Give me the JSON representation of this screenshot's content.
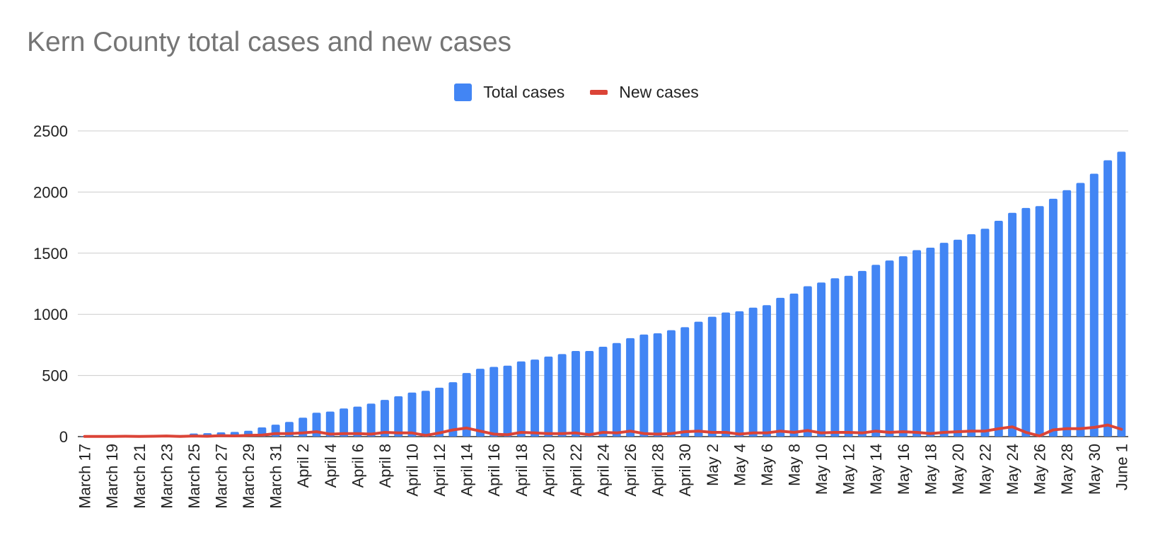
{
  "chart_data": {
    "type": "bar",
    "title": "Kern County total cases and new cases",
    "xlabel": "",
    "ylabel": "",
    "ylim": [
      0,
      2500
    ],
    "yticks": [
      0,
      500,
      1000,
      1500,
      2000,
      2500
    ],
    "grid": true,
    "legend_position": "top-center",
    "categories": [
      "March 17",
      "March 18",
      "March 19",
      "March 20",
      "March 21",
      "March 22",
      "March 23",
      "March 24",
      "March 25",
      "March 26",
      "March 27",
      "March 28",
      "March 29",
      "March 30",
      "March 31",
      "April 1",
      "April 2",
      "April 3",
      "April 4",
      "April 5",
      "April 6",
      "April 7",
      "April 8",
      "April 9",
      "April 10",
      "April 11",
      "April 12",
      "April 13",
      "April 14",
      "April 15",
      "April 16",
      "April 17",
      "April 18",
      "April 19",
      "April 20",
      "April 21",
      "April 22",
      "April 23",
      "April 24",
      "April 25",
      "April 26",
      "April 27",
      "April 28",
      "April 29",
      "April 30",
      "May 1",
      "May 2",
      "May 3",
      "May 4",
      "May 5",
      "May 6",
      "May 7",
      "May 8",
      "May 9",
      "May 10",
      "May 11",
      "May 12",
      "May 13",
      "May 14",
      "May 15",
      "May 16",
      "May 17",
      "May 18",
      "May 19",
      "May 20",
      "May 21",
      "May 22",
      "May 23",
      "May 24",
      "May 25",
      "May 26",
      "May 27",
      "May 28",
      "May 29",
      "May 30",
      "May 31",
      "June 1"
    ],
    "category_labels": [
      "March 17",
      "",
      "March 19",
      "",
      "March 21",
      "",
      "March 23",
      "",
      "March 25",
      "",
      "March 27",
      "",
      "March 29",
      "",
      "March 31",
      "",
      "April 2",
      "",
      "April 4",
      "",
      "April 6",
      "",
      "April 8",
      "",
      "April 10",
      "",
      "April 12",
      "",
      "April 14",
      "",
      "April 16",
      "",
      "April 18",
      "",
      "April 20",
      "",
      "April 22",
      "",
      "April 24",
      "",
      "April 26",
      "",
      "April 28",
      "",
      "April 30",
      "",
      "May 2",
      "",
      "May 4",
      "",
      "May 6",
      "",
      "May 8",
      "",
      "May 10",
      "",
      "May 12",
      "",
      "May 14",
      "",
      "May 16",
      "",
      "May 18",
      "",
      "May 20",
      "",
      "May 22",
      "",
      "May 24",
      "",
      "May 26",
      "",
      "May 28",
      "",
      "May 30",
      "",
      "June 1"
    ],
    "series": [
      {
        "name": "Total cases",
        "type": "bar",
        "color": "#4285f4",
        "values": [
          3,
          3,
          5,
          6,
          6,
          8,
          10,
          12,
          25,
          28,
          35,
          38,
          48,
          75,
          98,
          120,
          155,
          195,
          205,
          230,
          245,
          270,
          300,
          330,
          360,
          375,
          400,
          445,
          520,
          555,
          570,
          580,
          615,
          630,
          655,
          675,
          700,
          700,
          735,
          765,
          805,
          835,
          845,
          870,
          895,
          940,
          980,
          1015,
          1025,
          1055,
          1075,
          1135,
          1170,
          1230,
          1260,
          1295,
          1315,
          1355,
          1405,
          1440,
          1475,
          1525,
          1545,
          1585,
          1610,
          1655,
          1700,
          1765,
          1830,
          1870,
          1885,
          1945,
          2015,
          2075,
          2150,
          2260,
          2330
        ]
      },
      {
        "name": "New cases",
        "type": "line",
        "color": "#db4437",
        "values": [
          2,
          1,
          2,
          3,
          2,
          3,
          5,
          2,
          5,
          3,
          8,
          6,
          10,
          12,
          25,
          25,
          30,
          40,
          20,
          25,
          25,
          20,
          35,
          30,
          30,
          10,
          30,
          55,
          70,
          45,
          20,
          15,
          35,
          30,
          25,
          25,
          30,
          15,
          35,
          30,
          45,
          25,
          20,
          25,
          40,
          45,
          35,
          35,
          20,
          30,
          30,
          45,
          35,
          50,
          30,
          35,
          35,
          30,
          45,
          35,
          40,
          35,
          25,
          35,
          40,
          45,
          45,
          65,
          80,
          35,
          5,
          55,
          65,
          65,
          75,
          95,
          60
        ]
      }
    ]
  }
}
